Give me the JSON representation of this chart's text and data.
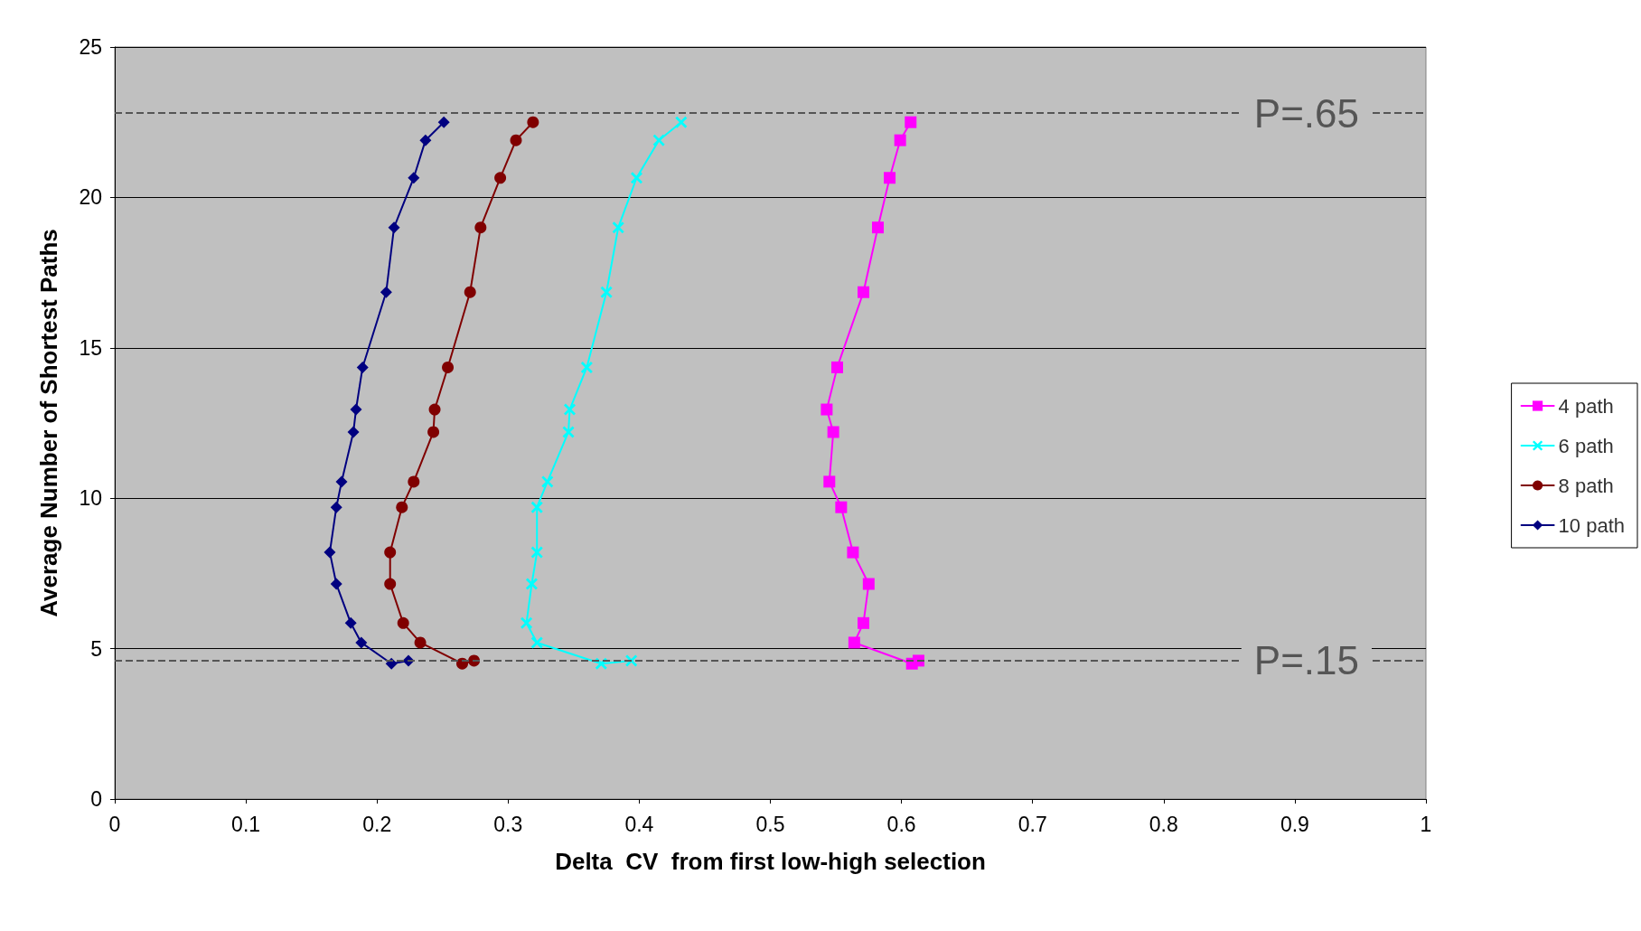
{
  "chart_data": {
    "type": "line",
    "xlabel": "Delta  CV  from first low-high selection",
    "ylabel": "Average Number of Shortest Paths",
    "xlim": [
      0,
      1
    ],
    "xticks": [
      0,
      0.1,
      0.2,
      0.3,
      0.4,
      0.5,
      0.6,
      0.7,
      0.8,
      0.9,
      1
    ],
    "ylim": [
      0,
      25
    ],
    "yticks": [
      0,
      5,
      10,
      15,
      20,
      25
    ],
    "grid": "y",
    "legend": "right",
    "line_style": "solid",
    "series": [
      {
        "name": "4 path",
        "color": "#ff00ff",
        "marker": "square",
        "x": [
          0.607,
          0.599,
          0.591,
          0.582,
          0.571,
          0.551,
          0.543,
          0.548,
          0.545,
          0.554,
          0.563,
          0.575,
          0.571,
          0.564,
          0.608,
          0.613
        ],
        "values": [
          22.5,
          21.9,
          20.65,
          19.0,
          16.85,
          14.35,
          12.95,
          12.2,
          10.55,
          9.7,
          8.2,
          7.15,
          5.85,
          5.2,
          4.5,
          4.6
        ]
      },
      {
        "name": "6 path",
        "color": "#00ffff",
        "marker": "cross",
        "x": [
          0.432,
          0.415,
          0.398,
          0.384,
          0.375,
          0.36,
          0.347,
          0.346,
          0.33,
          0.322,
          0.322,
          0.318,
          0.314,
          0.322,
          0.371,
          0.394
        ],
        "values": [
          22.5,
          21.9,
          20.65,
          19.0,
          16.85,
          14.35,
          12.95,
          12.2,
          10.55,
          9.7,
          8.2,
          7.15,
          5.85,
          5.2,
          4.5,
          4.6
        ]
      },
      {
        "name": "8 path",
        "color": "#800000",
        "marker": "circle",
        "x": [
          0.319,
          0.306,
          0.294,
          0.279,
          0.271,
          0.254,
          0.244,
          0.243,
          0.228,
          0.219,
          0.21,
          0.21,
          0.22,
          0.233,
          0.265,
          0.274
        ],
        "values": [
          22.5,
          21.9,
          20.65,
          19.0,
          16.85,
          14.35,
          12.95,
          12.2,
          10.55,
          9.7,
          8.2,
          7.15,
          5.85,
          5.2,
          4.5,
          4.6
        ]
      },
      {
        "name": "10 path",
        "color": "#000080",
        "marker": "diamond",
        "x": [
          0.251,
          0.237,
          0.228,
          0.213,
          0.207,
          0.189,
          0.184,
          0.182,
          0.173,
          0.169,
          0.164,
          0.169,
          0.18,
          0.188,
          0.211,
          0.224
        ],
        "values": [
          22.5,
          21.9,
          20.65,
          19.0,
          16.85,
          14.35,
          12.95,
          12.2,
          10.55,
          9.7,
          8.2,
          7.15,
          5.85,
          5.2,
          4.5,
          4.6
        ]
      }
    ],
    "ref_lines": [
      {
        "axis": "y",
        "value": 22.8,
        "label": "P=.65",
        "color": "#555555",
        "line_style": "dashed"
      },
      {
        "axis": "y",
        "value": 4.6,
        "label": "P=.15",
        "color": "#555555",
        "line_style": "dashed"
      }
    ]
  }
}
